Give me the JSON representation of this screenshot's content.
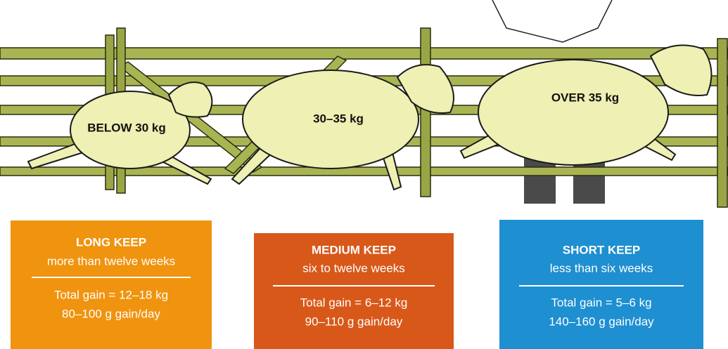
{
  "sheep": [
    {
      "label": "BELOW 30 kg"
    },
    {
      "label": "30–35 kg"
    },
    {
      "label": "OVER 35 kg"
    }
  ],
  "boxes": [
    {
      "title": "LONG KEEP",
      "subtitle": "more than twelve weeks",
      "gain": "Total gain = 12–18 kg",
      "rate": "80–100 g gain/day"
    },
    {
      "title": "MEDIUM KEEP",
      "subtitle": "six to twelve weeks",
      "gain": "Total gain = 6–12 kg",
      "rate": "90–110 g gain/day"
    },
    {
      "title": "SHORT KEEP",
      "subtitle": "less than six weeks",
      "gain": "Total gain = 5–6 kg",
      "rate": "140–160 g gain/day"
    }
  ]
}
